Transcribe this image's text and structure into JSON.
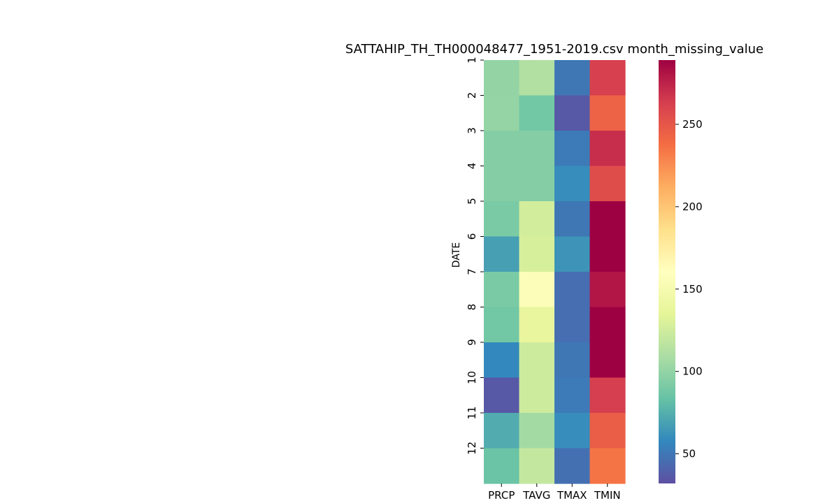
{
  "chart_data": {
    "type": "heatmap",
    "title": "SATTAHIP_TH_TH000048477_1951-2019.csv month_missing_value",
    "xlabel": "",
    "ylabel": "DATE",
    "columns": [
      "PRCP",
      "TAVG",
      "TMAX",
      "TMIN"
    ],
    "rows": [
      "1",
      "2",
      "3",
      "4",
      "5",
      "6",
      "7",
      "8",
      "9",
      "10",
      "11",
      "12"
    ],
    "values": [
      [
        100,
        112,
        50,
        262
      ],
      [
        101,
        88,
        36,
        243
      ],
      [
        95,
        95,
        52,
        270
      ],
      [
        95,
        95,
        60,
        255
      ],
      [
        91,
        126,
        50,
        289
      ],
      [
        68,
        128,
        63,
        289
      ],
      [
        91,
        156,
        46,
        280
      ],
      [
        88,
        138,
        46,
        289
      ],
      [
        58,
        124,
        50,
        289
      ],
      [
        36,
        124,
        52,
        263
      ],
      [
        73,
        106,
        60,
        246
      ],
      [
        85,
        120,
        47,
        235
      ]
    ],
    "colorbar": {
      "colormap": "Spectral_r",
      "vmin": 32,
      "vmax": 289,
      "ticks": [
        50,
        100,
        150,
        200,
        250
      ]
    }
  }
}
